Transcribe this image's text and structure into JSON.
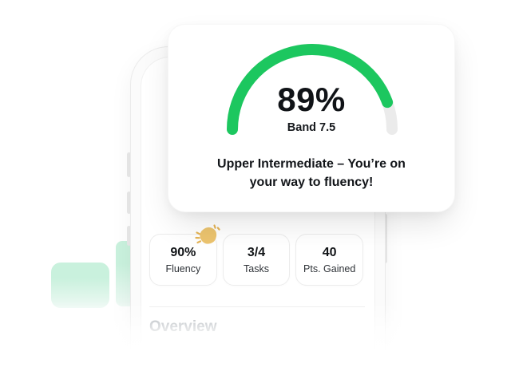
{
  "result_card": {
    "score": "89%",
    "band_label": "Band 7.5",
    "message": "Upper Intermediate – You’re on\nyour way to fluency!"
  },
  "gauge": {
    "type": "gauge",
    "percent": 89,
    "progress_color": "#1cc75f",
    "track_color": "#ebebeb"
  },
  "stats": [
    {
      "value": "90%",
      "label": "Fluency"
    },
    {
      "value": "3/4",
      "label": "Tasks"
    },
    {
      "value": "40",
      "label": "Pts. Gained"
    }
  ],
  "overview": {
    "heading": "Overview"
  },
  "icons": {
    "clap": "clapping-hands-icon"
  },
  "css_vars": {
    "mint": "#c9f1dd",
    "mint-fade": "#eef9f4",
    "gold": "#ecc46f",
    "gold-dark": "#e5b456"
  }
}
